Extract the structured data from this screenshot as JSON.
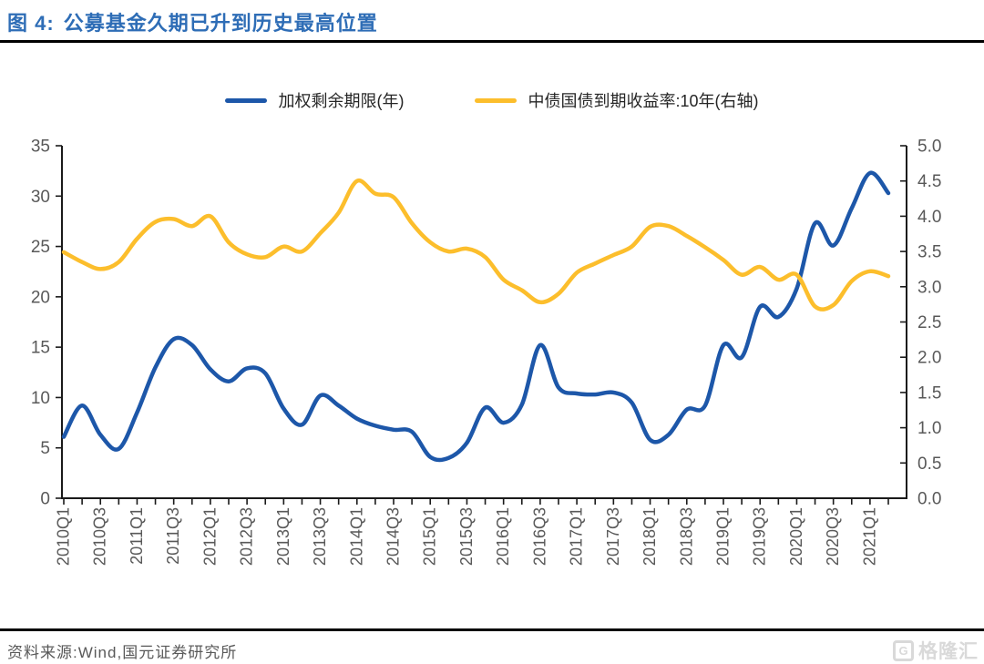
{
  "header": {
    "figure_label": "图 4:",
    "title": "公募基金久期已升到历史最高位置"
  },
  "legend": {
    "items": [
      {
        "label": "加权剩余期限(年)",
        "color": "#1d57a9"
      },
      {
        "label": "中债国债到期收益率:10年(右轴)",
        "color": "#fcbe2c"
      }
    ]
  },
  "footer": {
    "source_label": "资料来源:",
    "source_text": "Wind,国元证券研究所",
    "watermark": {
      "icon_text": "G",
      "text": "格隆汇"
    }
  },
  "colors": {
    "title_blue": "#2e6db6",
    "series_blue": "#1d57a9",
    "series_yellow": "#fcbe2c",
    "axis_line": "#1a1a1a",
    "tick_label_gray": "#595959",
    "divider_black": "#000000",
    "watermark_gray": "#d9d9d9"
  },
  "chart_data": {
    "type": "line",
    "smooth": true,
    "grid": false,
    "legend_position": "top",
    "x": [
      "2010Q1",
      "2010Q2",
      "2010Q3",
      "2010Q4",
      "2011Q1",
      "2011Q2",
      "2011Q3",
      "2011Q4",
      "2012Q1",
      "2012Q2",
      "2012Q3",
      "2012Q4",
      "2013Q1",
      "2013Q2",
      "2013Q3",
      "2013Q4",
      "2014Q1",
      "2014Q2",
      "2014Q3",
      "2014Q4",
      "2015Q1",
      "2015Q2",
      "2015Q3",
      "2015Q4",
      "2016Q1",
      "2016Q2",
      "2016Q3",
      "2016Q4",
      "2017Q1",
      "2017Q2",
      "2017Q3",
      "2017Q4",
      "2018Q1",
      "2018Q2",
      "2018Q3",
      "2018Q4",
      "2019Q1",
      "2019Q2",
      "2019Q3",
      "2019Q4",
      "2020Q1",
      "2020Q2",
      "2020Q3",
      "2020Q4",
      "2021Q1",
      "2021Q2"
    ],
    "x_label_every": 2,
    "left_axis": {
      "min": 0,
      "max": 35,
      "step": 5,
      "decimals": 0
    },
    "right_axis": {
      "min": 0,
      "max": 5,
      "step": 0.5,
      "decimals": 1
    },
    "series": [
      {
        "id": "fund_duration",
        "name": "加权剩余期限(年)",
        "axis": "left",
        "color": "#1d57a9",
        "values": [
          6.1,
          9.2,
          6.3,
          4.9,
          8.5,
          13.0,
          15.8,
          15.2,
          12.8,
          11.6,
          12.9,
          12.4,
          8.9,
          7.3,
          10.2,
          9.2,
          7.9,
          7.2,
          6.8,
          6.6,
          4.1,
          4.0,
          5.5,
          9.0,
          7.5,
          9.3,
          15.2,
          11.0,
          10.4,
          10.3,
          10.5,
          9.5,
          5.8,
          6.3,
          8.8,
          9.2,
          15.2,
          14.0,
          19.0,
          18.0,
          20.8,
          27.3,
          25.1,
          28.8,
          32.3,
          30.3
        ]
      },
      {
        "id": "cgb10y_yield",
        "name": "中债国债到期收益率:10年(右轴)",
        "axis": "right",
        "color": "#fcbe2c",
        "values": [
          3.49,
          3.35,
          3.25,
          3.35,
          3.68,
          3.92,
          3.96,
          3.86,
          4.0,
          3.63,
          3.46,
          3.42,
          3.57,
          3.5,
          3.76,
          4.05,
          4.5,
          4.32,
          4.27,
          3.9,
          3.63,
          3.5,
          3.54,
          3.42,
          3.1,
          2.95,
          2.78,
          2.9,
          3.2,
          3.33,
          3.45,
          3.57,
          3.85,
          3.86,
          3.72,
          3.56,
          3.38,
          3.17,
          3.28,
          3.1,
          3.17,
          2.72,
          2.74,
          3.08,
          3.22,
          3.15
        ]
      }
    ]
  }
}
